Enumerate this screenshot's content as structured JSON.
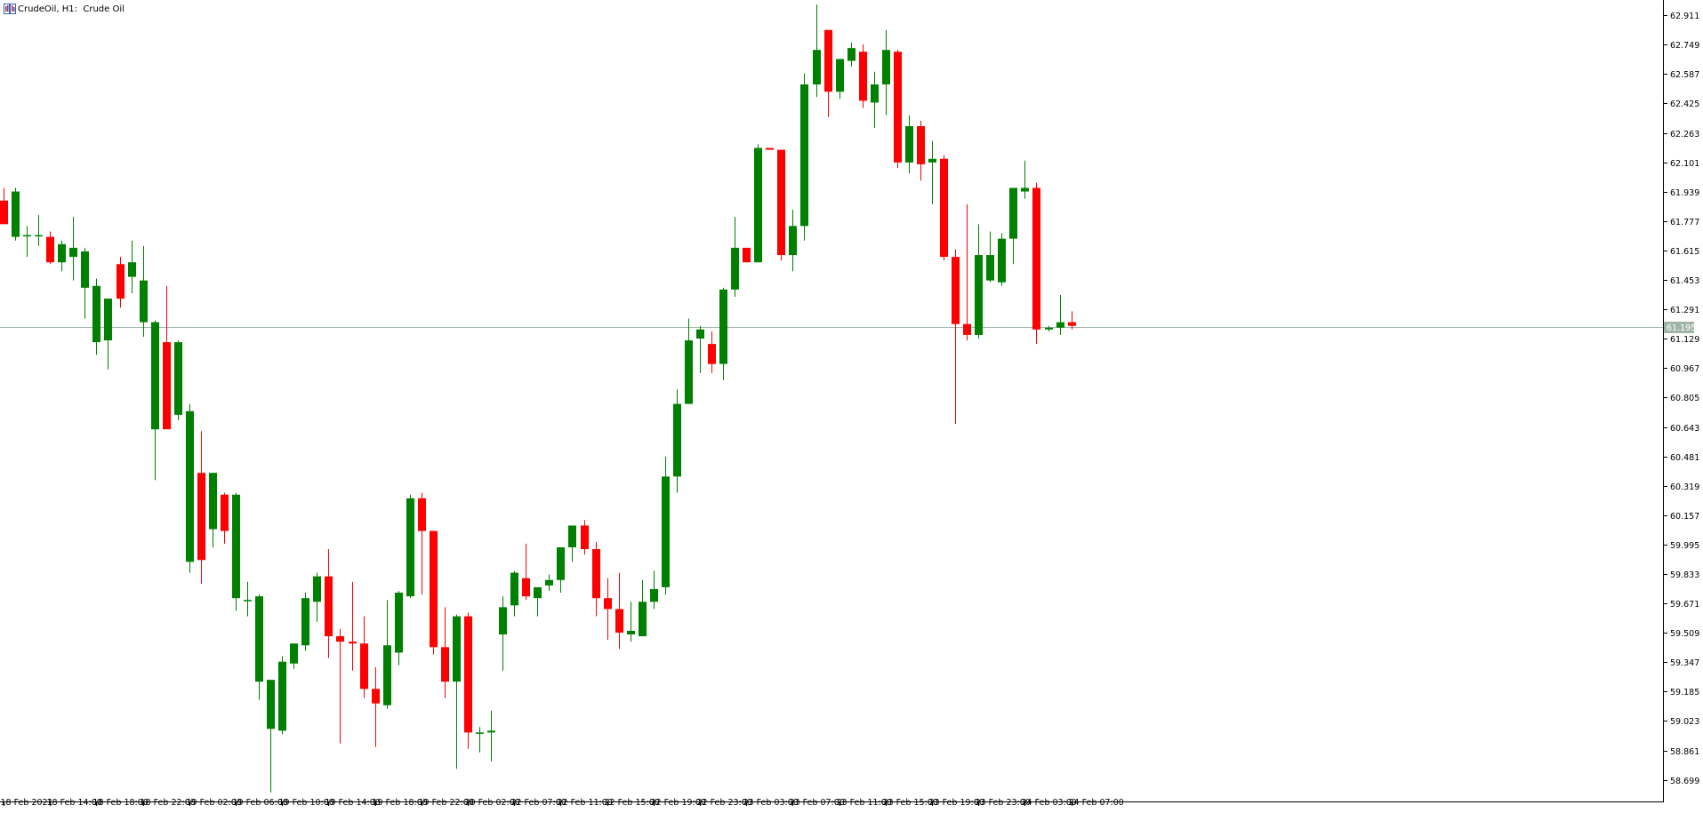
{
  "header": {
    "symbol": "CrudeOil",
    "timeframe": "H1",
    "description": "Crude Oil",
    "icon": "chart-window-icon"
  },
  "colors": {
    "bull": "#008000",
    "bear": "#ff0000",
    "grid": "#000000",
    "price_line": "#a0b4aa",
    "price_label_bg": "#a0b4aa",
    "price_label_text": "#ffffff",
    "background": "#ffffff"
  },
  "current_price": "61.195",
  "chart_data": {
    "type": "candlestick",
    "title": "",
    "xlabel": "",
    "ylabel": "",
    "ylim": [
      58.58,
      62.995
    ],
    "y_ticks": [
      "62.911",
      "62.749",
      "62.587",
      "62.425",
      "62.263",
      "62.101",
      "61.939",
      "61.777",
      "61.615",
      "61.453",
      "61.291",
      "61.129",
      "60.967",
      "60.805",
      "60.643",
      "60.481",
      "60.319",
      "60.157",
      "59.995",
      "59.833",
      "59.671",
      "59.509",
      "59.347",
      "59.185",
      "59.023",
      "58.861",
      "58.699"
    ],
    "x_ticks": [
      "18 Feb 2021",
      "18 Feb 14:00",
      "18 Feb 18:00",
      "18 Feb 22:00",
      "19 Feb 02:00",
      "19 Feb 06:00",
      "19 Feb 10:00",
      "19 Feb 14:00",
      "19 Feb 18:00",
      "19 Feb 22:00",
      "20 Feb 02:00",
      "22 Feb 07:00",
      "22 Feb 11:00",
      "22 Feb 15:00",
      "22 Feb 19:00",
      "22 Feb 23:00",
      "23 Feb 03:00",
      "23 Feb 07:00",
      "23 Feb 11:00",
      "23 Feb 15:00",
      "23 Feb 19:00",
      "23 Feb 23:00",
      "24 Feb 03:00",
      "24 Feb 07:00"
    ],
    "ohlc": [
      {
        "o": 61.89,
        "h": 61.96,
        "l": 61.8,
        "c": 61.76
      },
      {
        "o": 61.69,
        "h": 61.96,
        "l": 61.67,
        "c": 61.94
      },
      {
        "o": 61.7,
        "h": 61.75,
        "l": 61.58,
        "c": 61.7
      },
      {
        "o": 61.7,
        "h": 61.81,
        "l": 61.64,
        "c": 61.7
      },
      {
        "o": 61.69,
        "h": 61.72,
        "l": 61.54,
        "c": 61.55
      },
      {
        "o": 61.55,
        "h": 61.67,
        "l": 61.5,
        "c": 61.65
      },
      {
        "o": 61.58,
        "h": 61.8,
        "l": 61.45,
        "c": 61.63
      },
      {
        "o": 61.41,
        "h": 61.63,
        "l": 61.24,
        "c": 61.61
      },
      {
        "o": 61.11,
        "h": 61.46,
        "l": 61.04,
        "c": 61.42
      },
      {
        "o": 61.12,
        "h": 61.35,
        "l": 60.96,
        "c": 61.35
      },
      {
        "o": 61.54,
        "h": 61.58,
        "l": 61.3,
        "c": 61.35
      },
      {
        "o": 61.47,
        "h": 61.67,
        "l": 61.38,
        "c": 61.55
      },
      {
        "o": 61.22,
        "h": 61.64,
        "l": 61.14,
        "c": 61.45
      },
      {
        "o": 60.63,
        "h": 61.23,
        "l": 60.35,
        "c": 61.22
      },
      {
        "o": 61.11,
        "h": 61.42,
        "l": 60.66,
        "c": 60.63
      },
      {
        "o": 60.71,
        "h": 61.12,
        "l": 60.68,
        "c": 61.11
      },
      {
        "o": 59.9,
        "h": 60.77,
        "l": 59.84,
        "c": 60.73
      },
      {
        "o": 60.39,
        "h": 60.62,
        "l": 59.78,
        "c": 59.91
      },
      {
        "o": 60.08,
        "h": 60.39,
        "l": 59.98,
        "c": 60.39
      },
      {
        "o": 60.27,
        "h": 60.28,
        "l": 60.0,
        "c": 60.07
      },
      {
        "o": 59.7,
        "h": 60.28,
        "l": 59.63,
        "c": 60.27
      },
      {
        "o": 59.69,
        "h": 59.79,
        "l": 59.6,
        "c": 59.69
      },
      {
        "o": 59.24,
        "h": 59.72,
        "l": 59.14,
        "c": 59.71
      },
      {
        "o": 58.98,
        "h": 59.25,
        "l": 58.63,
        "c": 59.25
      },
      {
        "o": 58.97,
        "h": 59.38,
        "l": 58.95,
        "c": 59.35
      },
      {
        "o": 59.34,
        "h": 59.45,
        "l": 59.31,
        "c": 59.45
      },
      {
        "o": 59.44,
        "h": 59.73,
        "l": 59.41,
        "c": 59.7
      },
      {
        "o": 59.68,
        "h": 59.84,
        "l": 59.57,
        "c": 59.82
      },
      {
        "o": 59.82,
        "h": 59.97,
        "l": 59.37,
        "c": 59.49
      },
      {
        "o": 59.49,
        "h": 59.53,
        "l": 58.9,
        "c": 59.46
      },
      {
        "o": 59.46,
        "h": 59.79,
        "l": 59.3,
        "c": 59.45
      },
      {
        "o": 59.45,
        "h": 59.6,
        "l": 59.15,
        "c": 59.2
      },
      {
        "o": 59.2,
        "h": 59.32,
        "l": 58.88,
        "c": 59.12
      },
      {
        "o": 59.11,
        "h": 59.69,
        "l": 59.09,
        "c": 59.44
      },
      {
        "o": 59.4,
        "h": 59.74,
        "l": 59.33,
        "c": 59.73
      },
      {
        "o": 59.71,
        "h": 60.27,
        "l": 59.7,
        "c": 60.25
      },
      {
        "o": 60.25,
        "h": 60.28,
        "l": 59.72,
        "c": 60.07
      },
      {
        "o": 60.07,
        "h": 60.07,
        "l": 59.39,
        "c": 59.43
      },
      {
        "o": 59.43,
        "h": 59.65,
        "l": 59.15,
        "c": 59.24
      },
      {
        "o": 59.24,
        "h": 59.61,
        "l": 58.76,
        "c": 59.6
      },
      {
        "o": 59.6,
        "h": 59.62,
        "l": 58.87,
        "c": 58.96
      },
      {
        "o": 58.96,
        "h": 58.99,
        "l": 58.85,
        "c": 58.96
      },
      {
        "o": 58.96,
        "h": 59.08,
        "l": 58.8,
        "c": 58.97
      },
      {
        "o": 59.5,
        "h": 59.71,
        "l": 59.3,
        "c": 59.65
      },
      {
        "o": 59.66,
        "h": 59.85,
        "l": 59.6,
        "c": 59.84
      },
      {
        "o": 59.81,
        "h": 60.0,
        "l": 59.69,
        "c": 59.71
      },
      {
        "o": 59.7,
        "h": 59.76,
        "l": 59.6,
        "c": 59.76
      },
      {
        "o": 59.77,
        "h": 59.83,
        "l": 59.74,
        "c": 59.8
      },
      {
        "o": 59.8,
        "h": 59.95,
        "l": 59.73,
        "c": 59.98
      },
      {
        "o": 59.98,
        "h": 60.1,
        "l": 59.9,
        "c": 60.1
      },
      {
        "o": 60.1,
        "h": 60.13,
        "l": 59.94,
        "c": 59.97
      },
      {
        "o": 59.97,
        "h": 60.01,
        "l": 59.6,
        "c": 59.7
      },
      {
        "o": 59.7,
        "h": 59.81,
        "l": 59.47,
        "c": 59.64
      },
      {
        "o": 59.64,
        "h": 59.84,
        "l": 59.42,
        "c": 59.51
      },
      {
        "o": 59.5,
        "h": 59.68,
        "l": 59.46,
        "c": 59.52
      },
      {
        "o": 59.49,
        "h": 59.8,
        "l": 59.5,
        "c": 59.68
      },
      {
        "o": 59.68,
        "h": 59.85,
        "l": 59.64,
        "c": 59.75
      },
      {
        "o": 59.76,
        "h": 60.48,
        "l": 59.72,
        "c": 60.37
      },
      {
        "o": 60.37,
        "h": 60.85,
        "l": 60.28,
        "c": 60.77
      },
      {
        "o": 60.77,
        "h": 61.24,
        "l": 60.77,
        "c": 61.12
      },
      {
        "o": 61.13,
        "h": 61.2,
        "l": 60.94,
        "c": 61.18
      },
      {
        "o": 61.1,
        "h": 61.17,
        "l": 60.94,
        "c": 60.99
      },
      {
        "o": 60.99,
        "h": 61.41,
        "l": 60.9,
        "c": 61.4
      },
      {
        "o": 61.4,
        "h": 61.8,
        "l": 61.36,
        "c": 61.63
      },
      {
        "o": 61.63,
        "h": 61.61,
        "l": 61.56,
        "c": 61.55
      },
      {
        "o": 61.55,
        "h": 62.2,
        "l": 61.55,
        "c": 62.18
      },
      {
        "o": 62.18,
        "h": 62.18,
        "l": 62.17,
        "c": 62.17
      },
      {
        "o": 62.17,
        "h": 62.17,
        "l": 61.56,
        "c": 61.59
      },
      {
        "o": 61.59,
        "h": 61.84,
        "l": 61.5,
        "c": 61.75
      },
      {
        "o": 61.75,
        "h": 62.59,
        "l": 61.67,
        "c": 62.53
      },
      {
        "o": 62.53,
        "h": 62.97,
        "l": 62.46,
        "c": 62.72
      },
      {
        "o": 62.83,
        "h": 62.83,
        "l": 62.35,
        "c": 62.49
      },
      {
        "o": 62.49,
        "h": 62.67,
        "l": 62.45,
        "c": 62.67
      },
      {
        "o": 62.66,
        "h": 62.76,
        "l": 62.63,
        "c": 62.73
      },
      {
        "o": 62.71,
        "h": 62.75,
        "l": 62.4,
        "c": 62.44
      },
      {
        "o": 62.43,
        "h": 62.6,
        "l": 62.29,
        "c": 62.53
      },
      {
        "o": 62.53,
        "h": 62.83,
        "l": 62.36,
        "c": 62.72
      },
      {
        "o": 62.71,
        "h": 62.72,
        "l": 62.07,
        "c": 62.1
      },
      {
        "o": 62.1,
        "h": 62.36,
        "l": 62.04,
        "c": 62.3
      },
      {
        "o": 62.3,
        "h": 62.33,
        "l": 62.0,
        "c": 62.09
      },
      {
        "o": 62.1,
        "h": 62.22,
        "l": 61.87,
        "c": 62.12
      },
      {
        "o": 62.12,
        "h": 62.14,
        "l": 61.56,
        "c": 61.58
      },
      {
        "o": 61.58,
        "h": 61.62,
        "l": 60.66,
        "c": 61.21
      },
      {
        "o": 61.21,
        "h": 61.87,
        "l": 61.12,
        "c": 61.15
      },
      {
        "o": 61.15,
        "h": 61.76,
        "l": 61.13,
        "c": 61.59
      },
      {
        "o": 61.45,
        "h": 61.72,
        "l": 61.44,
        "c": 61.59
      },
      {
        "o": 61.44,
        "h": 61.71,
        "l": 61.42,
        "c": 61.68
      },
      {
        "o": 61.68,
        "h": 61.96,
        "l": 61.54,
        "c": 61.96
      },
      {
        "o": 61.94,
        "h": 62.11,
        "l": 61.9,
        "c": 61.96
      },
      {
        "o": 61.96,
        "h": 61.99,
        "l": 61.1,
        "c": 61.18
      },
      {
        "o": 61.18,
        "h": 61.2,
        "l": 61.17,
        "c": 61.19
      },
      {
        "o": 61.19,
        "h": 61.37,
        "l": 61.15,
        "c": 61.22
      },
      {
        "o": 61.22,
        "h": 61.28,
        "l": 61.18,
        "c": 61.2
      }
    ]
  }
}
